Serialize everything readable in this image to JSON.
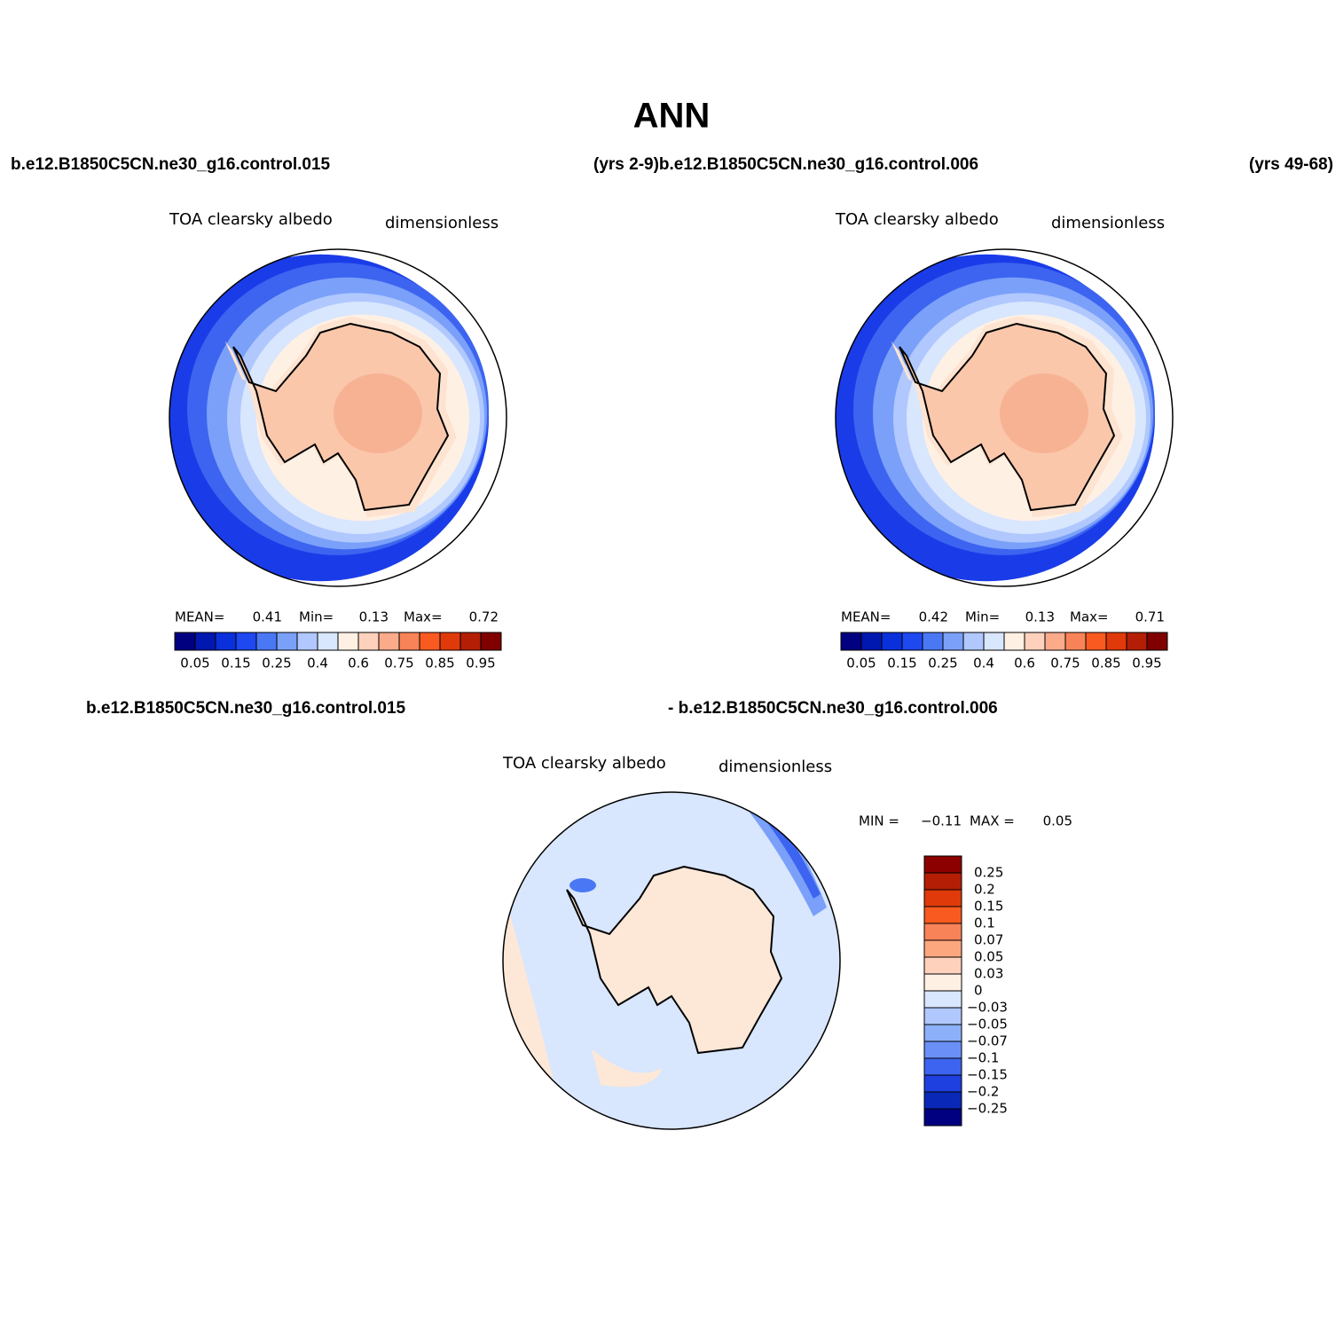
{
  "title": "ANN",
  "header": {
    "left": "b.e12.B1850C5CN.ne30_g16.control.015",
    "middle": "(yrs 2-9)b.e12.B1850C5CN.ne30_g16.control.006",
    "right": "(yrs 49-68)"
  },
  "panels": [
    {
      "variable": "TOA clearsky albedo",
      "units": "dimensionless",
      "stats": [
        "MEAN=",
        "0.41",
        "Min=",
        "0.13",
        "Max=",
        "0.72"
      ]
    },
    {
      "variable": "TOA clearsky albedo",
      "units": "dimensionless",
      "stats": [
        "MEAN=",
        "0.42",
        "Min=",
        "0.13",
        "Max=",
        "0.71"
      ]
    }
  ],
  "colorbar": {
    "labels": [
      "0.05",
      "0.15",
      "0.25",
      "0.4",
      "0.6",
      "0.75",
      "0.85",
      "0.95"
    ],
    "colors": [
      "#000080",
      "#0018b0",
      "#0a30dc",
      "#1e48f0",
      "#4a78f5",
      "#7aa0fa",
      "#b0c8fd",
      "#d8e6fe",
      "#fff0e4",
      "#fdd1bb",
      "#fcab8a",
      "#f98358",
      "#f95a20",
      "#e03a0a",
      "#b41e05",
      "#800000"
    ]
  },
  "difference": {
    "case_a": "b.e12.B1850C5CN.ne30_g16.control.015",
    "case_b": "- b.e12.B1850C5CN.ne30_g16.control.006",
    "variable": "TOA clearsky albedo",
    "units": "dimensionless",
    "stats": [
      "MIN =",
      "−0.11",
      "MAX =",
      "0.05"
    ],
    "colorbar": {
      "labels": [
        "0.25",
        "0.2",
        "0.15",
        "0.1",
        "0.07",
        "0.05",
        "0.03",
        "0",
        "−0.03",
        "−0.05",
        "−0.07",
        "−0.1",
        "−0.15",
        "−0.2",
        "−0.25"
      ],
      "colors": [
        "#8c0000",
        "#b41e05",
        "#e03a0a",
        "#f95a20",
        "#f98358",
        "#fca77e",
        "#fdd1bb",
        "#fff0e4",
        "#d8e6fe",
        "#b0c8fd",
        "#8cb0fa",
        "#6a90f7",
        "#3c64f0",
        "#1e40e0",
        "#0a28b8",
        "#000080"
      ]
    }
  }
}
